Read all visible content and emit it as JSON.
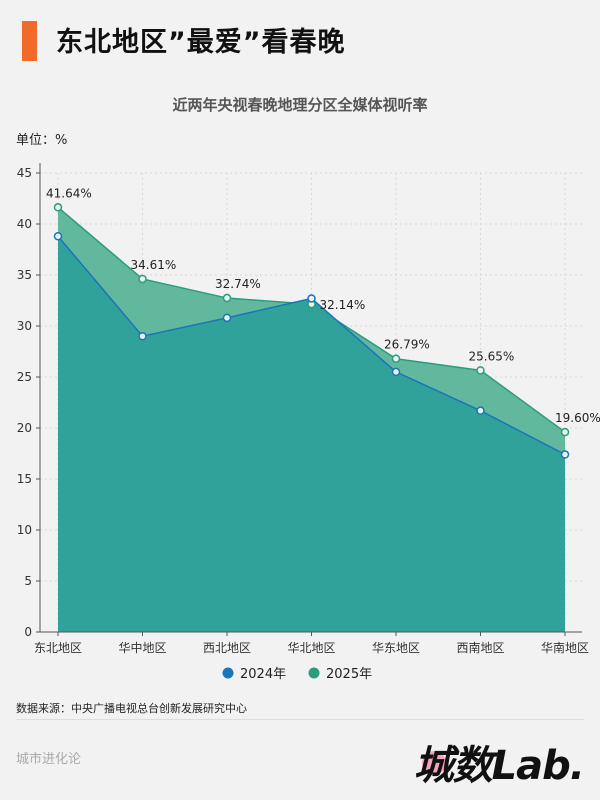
{
  "header": {
    "title": "东北地区”最爱”看春晚"
  },
  "chart_data": {
    "type": "area",
    "title": "近两年央视春晚地理分区全媒体视听率",
    "unit_label": "单位：%",
    "categories": [
      "东北地区",
      "华中地区",
      "西北地区",
      "华北地区",
      "华东地区",
      "西南地区",
      "华南地区"
    ],
    "ylim": [
      0,
      45
    ],
    "yticks": [
      0,
      5,
      10,
      15,
      20,
      25,
      30,
      35,
      40,
      45
    ],
    "grid": true,
    "legend_position": "bottom",
    "series": [
      {
        "name": "2024年",
        "values": [
          38.8,
          29.0,
          30.8,
          32.7,
          25.5,
          21.7,
          17.4
        ],
        "color": "#1a75bb",
        "fill": "#30a29a"
      },
      {
        "name": "2025年",
        "values": [
          41.64,
          34.61,
          32.74,
          32.14,
          26.79,
          25.65,
          19.6
        ],
        "color": "#2a9d7f",
        "fill": "#62b89c",
        "labels": [
          "41.64%",
          "34.61%",
          "32.74%",
          "32.14%",
          "26.79%",
          "25.65%",
          "19.60%"
        ]
      }
    ]
  },
  "footer": {
    "source": "数据来源：中央广播电视总台创新发展研究中心",
    "brand": "城市进化论",
    "logo": "城数Lab."
  }
}
